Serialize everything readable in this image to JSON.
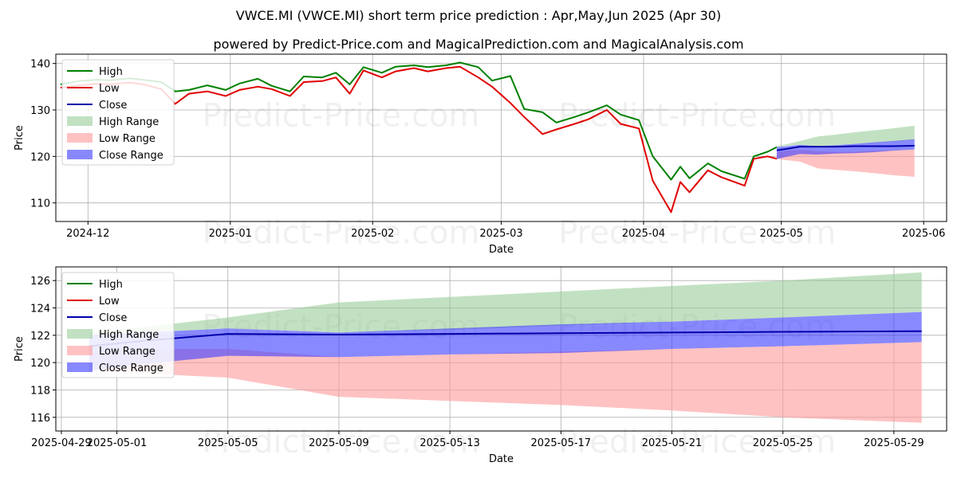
{
  "title": "VWCE.MI (VWCE.MI) short term price prediction : Apr,May,Jun 2025 (Apr 30)",
  "subtitle": "powered by Predict-Price.com and MagicalPrediction.com and MagicalAnalysis.com",
  "watermark": "Predict-Price.com",
  "colors": {
    "high": "#008000",
    "low": "#e00000",
    "close": "#0000aa",
    "high_range": "#8fc98f",
    "low_range": "#ff9a9a",
    "close_range": "#3a3aff"
  },
  "chart_data": [
    {
      "type": "line",
      "xlabel": "Date",
      "ylabel": "Price",
      "xlim": [
        "2024-11-24",
        "2025-06-06"
      ],
      "ylim": [
        106,
        142
      ],
      "x_ticks": [
        "2024-12-01",
        "2025-01-01",
        "2025-02-01",
        "2025-03-01",
        "2025-04-01",
        "2025-05-01",
        "2025-06-01"
      ],
      "x_tick_labels": [
        "2024-12",
        "2025-01",
        "2025-02",
        "2025-03",
        "2025-04",
        "2025-05",
        "2025-06"
      ],
      "y_ticks": [
        110,
        120,
        130,
        140
      ],
      "y_tick_labels": [
        "110",
        "120",
        "130",
        "140"
      ],
      "grid": true,
      "legend": "top-left",
      "legend_entries": [
        "High",
        "Low",
        "Close",
        "High Range",
        "Low Range",
        "Close Range"
      ],
      "series": [
        {
          "name": "High",
          "x": [
            "2024-11-25",
            "2024-11-29",
            "2024-12-03",
            "2024-12-06",
            "2024-12-10",
            "2024-12-13",
            "2024-12-17",
            "2024-12-20",
            "2024-12-23",
            "2024-12-27",
            "2024-12-31",
            "2025-01-03",
            "2025-01-07",
            "2025-01-10",
            "2025-01-14",
            "2025-01-17",
            "2025-01-21",
            "2025-01-24",
            "2025-01-27",
            "2025-01-30",
            "2025-02-03",
            "2025-02-06",
            "2025-02-10",
            "2025-02-13",
            "2025-02-17",
            "2025-02-20",
            "2025-02-24",
            "2025-02-27",
            "2025-03-03",
            "2025-03-06",
            "2025-03-10",
            "2025-03-13",
            "2025-03-17",
            "2025-03-20",
            "2025-03-24",
            "2025-03-27",
            "2025-03-31",
            "2025-04-03",
            "2025-04-07",
            "2025-04-09",
            "2025-04-11",
            "2025-04-15",
            "2025-04-18",
            "2025-04-23",
            "2025-04-25",
            "2025-04-28",
            "2025-04-30"
          ],
          "values": [
            135.5,
            136.2,
            136.5,
            136.4,
            136.8,
            136.5,
            136.0,
            134.0,
            134.3,
            135.3,
            134.3,
            135.7,
            136.7,
            135.2,
            134.0,
            137.2,
            137.0,
            138.0,
            135.5,
            139.2,
            138.0,
            139.3,
            139.6,
            139.2,
            139.6,
            140.2,
            139.2,
            136.3,
            137.3,
            130.2,
            129.5,
            127.3,
            128.5,
            129.5,
            131.0,
            129.0,
            127.8,
            120.0,
            115.0,
            117.8,
            115.3,
            118.5,
            116.8,
            115.2,
            120.0,
            121.0,
            122.0
          ]
        },
        {
          "name": "Low",
          "x": [
            "2024-11-25",
            "2024-11-29",
            "2024-12-03",
            "2024-12-06",
            "2024-12-10",
            "2024-12-13",
            "2024-12-17",
            "2024-12-20",
            "2024-12-23",
            "2024-12-27",
            "2024-12-31",
            "2025-01-03",
            "2025-01-07",
            "2025-01-10",
            "2025-01-14",
            "2025-01-17",
            "2025-01-21",
            "2025-01-24",
            "2025-01-27",
            "2025-01-30",
            "2025-02-03",
            "2025-02-06",
            "2025-02-10",
            "2025-02-13",
            "2025-02-17",
            "2025-02-20",
            "2025-02-24",
            "2025-02-27",
            "2025-03-03",
            "2025-03-06",
            "2025-03-10",
            "2025-03-13",
            "2025-03-17",
            "2025-03-20",
            "2025-03-24",
            "2025-03-27",
            "2025-03-31",
            "2025-04-03",
            "2025-04-07",
            "2025-04-09",
            "2025-04-11",
            "2025-04-15",
            "2025-04-18",
            "2025-04-23",
            "2025-04-25",
            "2025-04-28",
            "2025-04-30"
          ],
          "values": [
            134.8,
            135.3,
            135.6,
            135.5,
            135.9,
            135.5,
            134.5,
            131.3,
            133.5,
            134.0,
            133.0,
            134.3,
            135.0,
            134.5,
            133.0,
            136.0,
            136.2,
            137.0,
            133.5,
            138.5,
            137.0,
            138.3,
            139.0,
            138.3,
            139.0,
            139.3,
            137.0,
            135.0,
            131.5,
            128.5,
            124.8,
            125.8,
            127.0,
            128.0,
            130.0,
            127.0,
            126.0,
            114.8,
            108.0,
            114.5,
            112.3,
            117.0,
            115.5,
            113.7,
            119.5,
            120.0,
            119.5
          ]
        },
        {
          "name": "Close",
          "x": [
            "2025-04-30",
            "2025-05-02",
            "2025-05-05",
            "2025-05-09",
            "2025-05-13",
            "2025-05-17",
            "2025-05-21",
            "2025-05-25",
            "2025-05-30"
          ],
          "values": [
            121.3,
            121.6,
            122.1,
            122.1,
            122.1,
            122.2,
            122.2,
            122.2,
            122.3
          ]
        },
        {
          "name": "High Range",
          "x": [
            "2025-04-30",
            "2025-05-02",
            "2025-05-05",
            "2025-05-09",
            "2025-05-13",
            "2025-05-17",
            "2025-05-21",
            "2025-05-25",
            "2025-05-30"
          ],
          "lower": [
            122.0,
            122.3,
            122.5,
            122.2,
            122.4,
            122.7,
            122.9,
            123.2,
            123.6
          ],
          "upper": [
            122.2,
            122.6,
            123.3,
            124.3,
            124.7,
            125.2,
            125.6,
            126.0,
            126.6
          ]
        },
        {
          "name": "Low Range",
          "x": [
            "2025-04-30",
            "2025-05-02",
            "2025-05-05",
            "2025-05-09",
            "2025-05-13",
            "2025-05-17",
            "2025-05-21",
            "2025-05-25",
            "2025-05-30"
          ],
          "lower": [
            119.5,
            119.2,
            118.9,
            117.4,
            117.1,
            116.8,
            116.4,
            116.0,
            115.6
          ],
          "upper": [
            120.8,
            121.2,
            121.4,
            121.1,
            121.0,
            121.0,
            121.2,
            121.3,
            121.5
          ]
        },
        {
          "name": "Close Range",
          "x": [
            "2025-04-30",
            "2025-05-02",
            "2025-05-05",
            "2025-05-09",
            "2025-05-13",
            "2025-05-17",
            "2025-05-21",
            "2025-05-25",
            "2025-05-30"
          ],
          "lower": [
            119.4,
            119.9,
            120.5,
            120.4,
            120.6,
            120.7,
            120.9,
            121.2,
            121.5
          ],
          "upper": [
            122.0,
            122.2,
            122.5,
            122.2,
            122.4,
            122.7,
            123.0,
            123.3,
            123.7
          ]
        }
      ]
    },
    {
      "type": "line",
      "xlabel": "Date",
      "ylabel": "Price",
      "xlim": [
        "2025-04-28.8",
        "2025-05-30.9"
      ],
      "ylim": [
        115,
        127
      ],
      "x_ticks": [
        "2025-04-29",
        "2025-05-01",
        "2025-05-05",
        "2025-05-09",
        "2025-05-13",
        "2025-05-17",
        "2025-05-21",
        "2025-05-25",
        "2025-05-29"
      ],
      "x_tick_labels": [
        "2025-04-29",
        "2025-05-01",
        "2025-05-05",
        "2025-05-09",
        "2025-05-13",
        "2025-05-17",
        "2025-05-21",
        "2025-05-25",
        "2025-05-29"
      ],
      "y_ticks": [
        116,
        118,
        120,
        122,
        124,
        126
      ],
      "y_tick_labels": [
        "116",
        "118",
        "120",
        "122",
        "124",
        "126"
      ],
      "grid": true,
      "legend": "top-left",
      "legend_entries": [
        "High",
        "Low",
        "Close",
        "High Range",
        "Low Range",
        "Close Range"
      ],
      "series": [
        {
          "name": "Close",
          "x": [
            "2025-04-30",
            "2025-05-02",
            "2025-05-05",
            "2025-05-09",
            "2025-05-13",
            "2025-05-17",
            "2025-05-21",
            "2025-05-25",
            "2025-05-30"
          ],
          "values": [
            121.2,
            121.6,
            122.1,
            122.05,
            122.1,
            122.15,
            122.2,
            122.25,
            122.3
          ]
        },
        {
          "name": "High Range",
          "x": [
            "2025-04-30",
            "2025-05-02",
            "2025-05-05",
            "2025-05-09",
            "2025-05-13",
            "2025-05-17",
            "2025-05-21",
            "2025-05-25",
            "2025-05-30"
          ],
          "lower": [
            122.0,
            122.2,
            122.5,
            122.2,
            122.4,
            122.7,
            123.0,
            123.3,
            123.7
          ],
          "upper": [
            122.2,
            122.6,
            123.3,
            124.4,
            124.8,
            125.2,
            125.6,
            126.0,
            126.6
          ]
        },
        {
          "name": "Low Range",
          "x": [
            "2025-04-30",
            "2025-05-02",
            "2025-05-05",
            "2025-05-09",
            "2025-05-13",
            "2025-05-17",
            "2025-05-21",
            "2025-05-25",
            "2025-05-30"
          ],
          "lower": [
            119.5,
            119.2,
            118.9,
            117.5,
            117.2,
            116.9,
            116.5,
            116.0,
            115.6
          ],
          "upper": [
            120.8,
            121.0,
            121.0,
            120.4,
            120.6,
            120.8,
            121.0,
            121.2,
            121.5
          ]
        },
        {
          "name": "Close Range",
          "x": [
            "2025-04-30",
            "2025-05-02",
            "2025-05-05",
            "2025-05-09",
            "2025-05-13",
            "2025-05-17",
            "2025-05-21",
            "2025-05-25",
            "2025-05-30"
          ],
          "lower": [
            119.4,
            119.9,
            120.5,
            120.4,
            120.6,
            120.7,
            121.0,
            121.2,
            121.5
          ],
          "upper": [
            122.0,
            122.2,
            122.5,
            122.2,
            122.5,
            122.8,
            123.0,
            123.3,
            123.7
          ]
        }
      ]
    }
  ]
}
